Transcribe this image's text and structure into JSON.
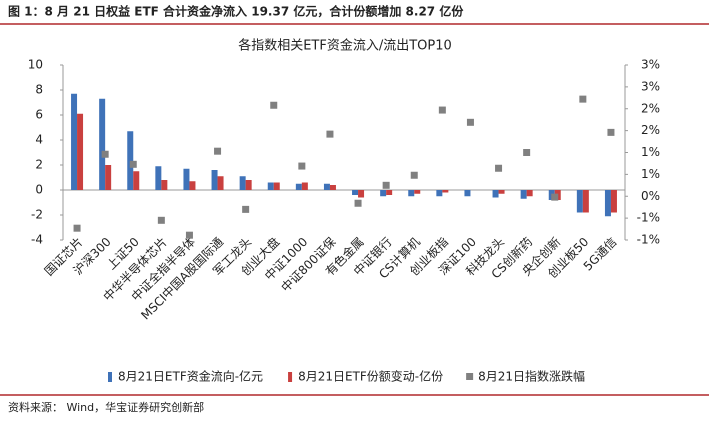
{
  "header": "图 1：8 月 21 日权益 ETF 合计资金净流入 19.37 亿元，合计份额增加 8.27 亿份",
  "source": "资料来源：  Wind，华宝证券研究创新部",
  "chart_data": {
    "type": "bar",
    "title": "各指数相关ETF资金流入/流出TOP10",
    "categories": [
      "国证芯片",
      "沪深300",
      "上证50",
      "中华半导体芯片",
      "中证全指半导体",
      "MSCI中国A股国际通",
      "军工龙头",
      "创业大盘",
      "中证1000",
      "中证800证保",
      "有色金属",
      "中证银行",
      "CS计算机",
      "创业板指",
      "深证100",
      "科技龙头",
      "CS创新药",
      "央企创新",
      "创业板50",
      "5G通信"
    ],
    "series": [
      {
        "name": "8月21日ETF资金流向-亿元",
        "color": "#3f72b8",
        "type": "bar",
        "values": [
          7.7,
          7.3,
          4.7,
          1.9,
          1.7,
          1.6,
          1.1,
          0.6,
          0.5,
          0.5,
          -0.4,
          -0.5,
          -0.5,
          -0.5,
          -0.5,
          -0.6,
          -0.7,
          -0.8,
          -1.8,
          -2.1
        ]
      },
      {
        "name": "8月21日ETF份额变动-亿份",
        "color": "#c9403f",
        "type": "bar",
        "values": [
          6.1,
          2.0,
          1.5,
          0.8,
          0.7,
          1.1,
          0.8,
          0.6,
          0.6,
          0.4,
          -0.6,
          -0.4,
          -0.3,
          -0.2,
          0,
          -0.3,
          -0.5,
          -0.8,
          -1.8,
          -1.8
        ]
      },
      {
        "name": "8月21日指数涨跌幅",
        "color": "#808080",
        "type": "scatter",
        "axis": "y2",
        "values": [
          -0.73,
          0.96,
          0.73,
          -0.55,
          -0.89,
          1.03,
          -0.3,
          2.08,
          0.69,
          1.42,
          -0.16,
          0.25,
          0.48,
          1.97,
          1.69,
          0.64,
          1.0,
          -0.02,
          2.22,
          1.46
        ]
      }
    ],
    "ylim": [
      -4,
      10
    ],
    "yticks": [
      -4,
      -2,
      0,
      2,
      4,
      6,
      8,
      10
    ],
    "y2lim": [
      -1,
      3
    ],
    "y2ticks": [
      {
        "value": -1,
        "label": "-1%"
      },
      {
        "value": -0.5,
        "label": "-1%"
      },
      {
        "value": 0,
        "label": "0%"
      },
      {
        "value": 0.5,
        "label": "1%"
      },
      {
        "value": 1,
        "label": "1%"
      },
      {
        "value": 1.5,
        "label": "2%"
      },
      {
        "value": 2,
        "label": "2%"
      },
      {
        "value": 2.5,
        "label": "3%"
      },
      {
        "value": 3,
        "label": "3%"
      }
    ],
    "legend": "bottom"
  }
}
